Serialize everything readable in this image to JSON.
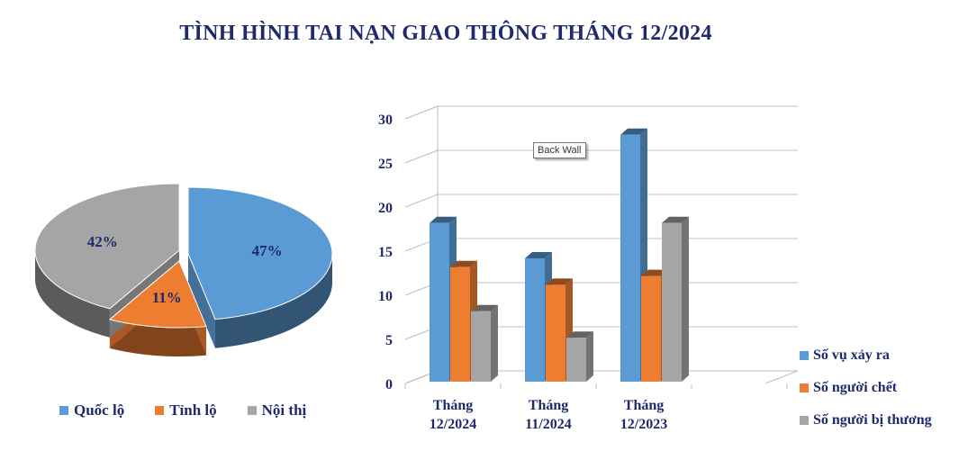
{
  "title": "TÌNH HÌNH TAI NẠN GIAO THÔNG THÁNG 12/2024",
  "tooltip": "Back Wall",
  "chart_data": [
    {
      "type": "pie",
      "categories": [
        "Quốc lộ",
        "Tỉnh lộ",
        "Nội thị"
      ],
      "values": [
        47,
        11,
        42
      ],
      "labels": [
        "47%",
        "11%",
        "42%"
      ],
      "colors": [
        "#5b9bd5",
        "#ed7d31",
        "#a5a5a5"
      ],
      "legend": "bottom",
      "style": "3d-exploded"
    },
    {
      "type": "bar",
      "categories": [
        {
          "line1": "Tháng",
          "line2": "12/2024"
        },
        {
          "line1": "Tháng",
          "line2": "11/2024"
        },
        {
          "line1": "Tháng",
          "line2": "12/2023"
        }
      ],
      "series": [
        {
          "name": "Số vụ xảy ra",
          "values": [
            19,
            15,
            29
          ],
          "color": "#5b9bd5"
        },
        {
          "name": "Số người chết",
          "values": [
            14,
            12,
            13
          ],
          "color": "#ed7d31"
        },
        {
          "name": "Số người bị thương",
          "values": [
            9,
            6,
            19
          ],
          "color": "#a5a5a5"
        }
      ],
      "ylim": [
        0,
        30
      ],
      "yticks": [
        "0",
        "5",
        "10",
        "15",
        "20",
        "25",
        "30"
      ],
      "grid": true,
      "legend": "bottom-right",
      "style": "3d-column"
    }
  ]
}
